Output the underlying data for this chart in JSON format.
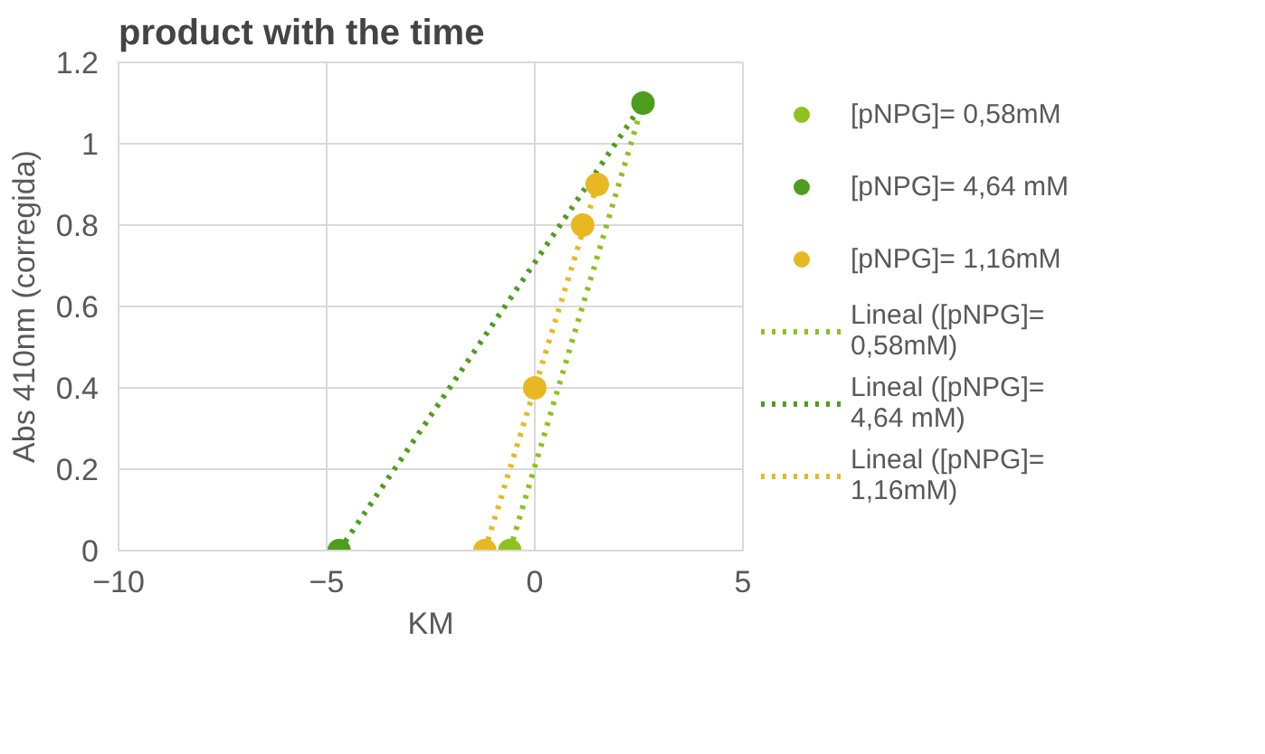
{
  "chart_data": {
    "type": "scatter",
    "title": "product with the time",
    "xlabel": "KM",
    "ylabel": "Abs 410nm (corregida)",
    "xlim": [
      -10,
      5
    ],
    "xticks": [
      -10,
      -5,
      0,
      5
    ],
    "ylim": [
      0,
      1.2
    ],
    "yticks": [
      0,
      0.2,
      0.4,
      0.6,
      0.8,
      1,
      1.2
    ],
    "grid": true,
    "legend": "right",
    "marker": "circle",
    "series": [
      {
        "name": "[pNPG]= 0,58mM",
        "color": "#8dc21f",
        "x": [
          -0.6
        ],
        "values": [
          0
        ]
      },
      {
        "name": "[pNPG]= 4,64 mM",
        "color": "#4d9e1e",
        "x": [
          -4.7,
          2.6
        ],
        "values": [
          0,
          1.1
        ]
      },
      {
        "name": "[pNPG]= 1,16mM",
        "color": "#e8b823",
        "x": [
          -1.2,
          0,
          1.15,
          1.5
        ],
        "values": [
          0,
          0.4,
          0.8,
          0.9
        ]
      },
      {
        "type": "line",
        "line_style": "dotted",
        "marker": "none",
        "name": "Lineal ([pNPG]= 0,58mM)",
        "color": "#8dc21f",
        "x": [
          -0.6,
          2.6
        ],
        "values": [
          0,
          1.1
        ]
      },
      {
        "type": "line",
        "line_style": "dotted",
        "marker": "none",
        "name": "Lineal ([pNPG]= 4,64 mM)",
        "color": "#4d9e1e",
        "x": [
          -4.7,
          2.6
        ],
        "values": [
          0,
          1.1
        ]
      },
      {
        "type": "line",
        "line_style": "dotted",
        "marker": "none",
        "name": "Lineal ([pNPG]= 1,16mM)",
        "color": "#e8b823",
        "x": [
          -1.2,
          1.5
        ],
        "values": [
          0,
          0.9
        ]
      }
    ]
  }
}
